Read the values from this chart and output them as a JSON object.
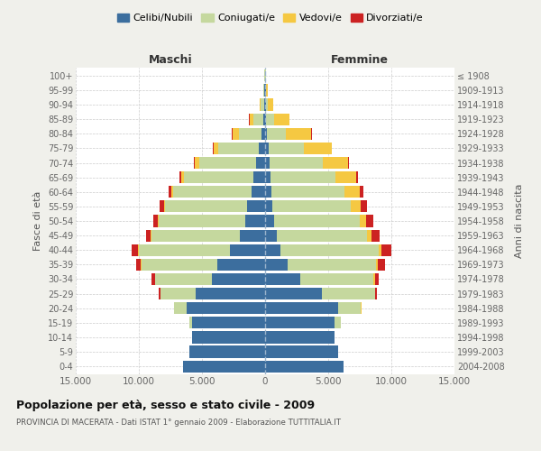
{
  "age_groups": [
    "0-4",
    "5-9",
    "10-14",
    "15-19",
    "20-24",
    "25-29",
    "30-34",
    "35-39",
    "40-44",
    "45-49",
    "50-54",
    "55-59",
    "60-64",
    "65-69",
    "70-74",
    "75-79",
    "80-84",
    "85-89",
    "90-94",
    "95-99",
    "100+"
  ],
  "birth_years": [
    "2004-2008",
    "1999-2003",
    "1994-1998",
    "1989-1993",
    "1984-1988",
    "1979-1983",
    "1974-1978",
    "1969-1973",
    "1964-1968",
    "1959-1963",
    "1954-1958",
    "1949-1953",
    "1944-1948",
    "1939-1943",
    "1934-1938",
    "1929-1933",
    "1924-1928",
    "1919-1923",
    "1914-1918",
    "1909-1913",
    "≤ 1908"
  ],
  "colors": {
    "celibi": "#3c6e9e",
    "coniugati": "#c5d89e",
    "vedovi": "#f5c842",
    "divorziati": "#cc2222"
  },
  "legend_labels": [
    "Celibi/Nubili",
    "Coniugati/e",
    "Vedovi/e",
    "Divorziati/e"
  ],
  "maschi": {
    "celibi": [
      6500,
      6000,
      5800,
      5800,
      6200,
      5500,
      4200,
      3800,
      2800,
      2000,
      1600,
      1400,
      1100,
      900,
      700,
      500,
      300,
      150,
      80,
      50,
      30
    ],
    "coniugati": [
      0,
      5,
      10,
      200,
      1000,
      2800,
      4500,
      6000,
      7200,
      7000,
      6800,
      6500,
      6200,
      5500,
      4500,
      3200,
      1800,
      800,
      250,
      80,
      20
    ],
    "vedovi": [
      0,
      0,
      0,
      0,
      5,
      15,
      20,
      40,
      50,
      60,
      80,
      100,
      150,
      250,
      350,
      400,
      500,
      300,
      100,
      30,
      10
    ],
    "divorziati": [
      0,
      0,
      0,
      5,
      30,
      80,
      250,
      400,
      500,
      350,
      400,
      350,
      200,
      150,
      80,
      50,
      20,
      10,
      5,
      0,
      0
    ]
  },
  "femmine": {
    "nubili": [
      6200,
      5800,
      5500,
      5500,
      5800,
      4500,
      2800,
      1800,
      1200,
      900,
      700,
      600,
      500,
      400,
      350,
      250,
      150,
      100,
      60,
      40,
      25
    ],
    "coniugati": [
      0,
      5,
      30,
      500,
      1800,
      4200,
      5800,
      7000,
      7800,
      7200,
      6800,
      6200,
      5800,
      5200,
      4200,
      2800,
      1500,
      600,
      180,
      60,
      15
    ],
    "vedovi": [
      0,
      0,
      0,
      0,
      10,
      40,
      80,
      120,
      200,
      300,
      500,
      800,
      1200,
      1600,
      2000,
      2200,
      2000,
      1200,
      400,
      100,
      20
    ],
    "divorziati": [
      0,
      0,
      0,
      10,
      50,
      120,
      350,
      600,
      800,
      650,
      600,
      450,
      250,
      150,
      80,
      50,
      30,
      10,
      5,
      0,
      0
    ]
  },
  "title": "Popolazione per età, sesso e stato civile - 2009",
  "subtitle": "PROVINCIA DI MACERATA - Dati ISTAT 1° gennaio 2009 - Elaborazione TUTTITALIA.IT",
  "ylabel_left": "Fasce di età",
  "ylabel_right": "Anni di nascita",
  "xlabel_maschi": "Maschi",
  "xlabel_femmine": "Femmine",
  "xlim": 15000,
  "bg_color": "#f0f0eb",
  "plot_bg": "#ffffff",
  "grid_color": "#cccccc"
}
